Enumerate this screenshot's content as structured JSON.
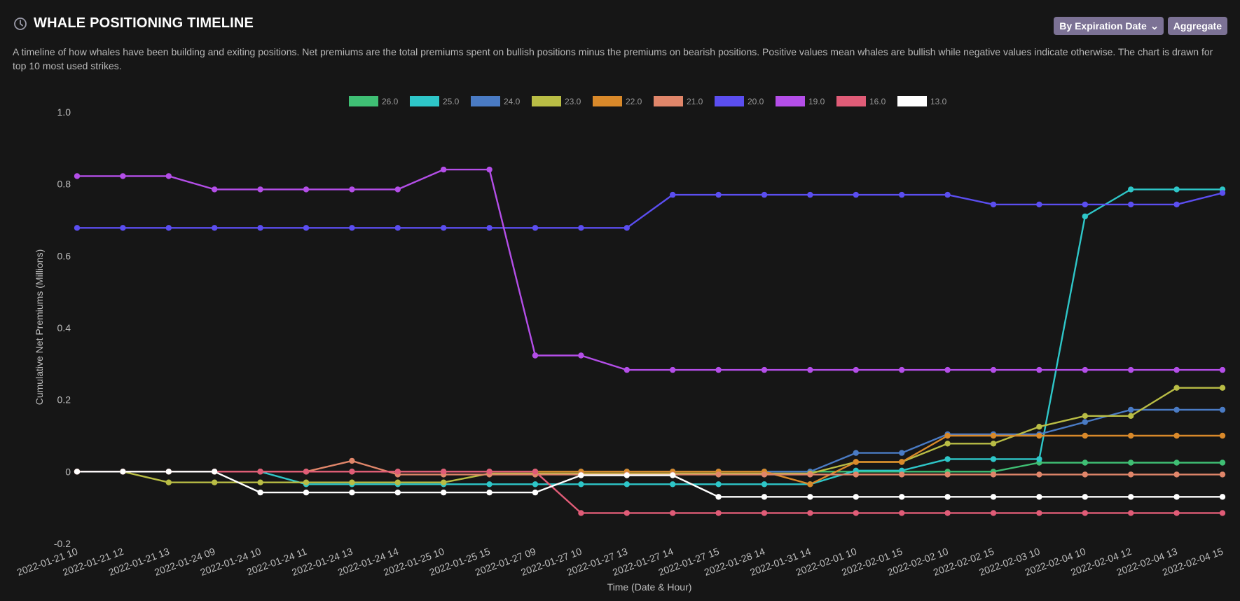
{
  "header": {
    "title": "WHALE POSITIONING TIMELINE",
    "description": "A timeline of how whales have been building and exiting positions. Net premiums are the total premiums spent on bullish positions minus the premiums on bearish positions. Positive values mean whales are bullish while negative values indicate otherwise. The chart is drawn for top 10 most used strikes.",
    "clock_icon": "clock-icon"
  },
  "controls": {
    "group_by_label": "By Expiration Date",
    "aggregate_label": "Aggregate",
    "button_color": "#7c7295"
  },
  "chart_data": {
    "type": "line",
    "xlabel": "Time (Date & Hour)",
    "ylabel": "Cumulative Net Premiums (Millions)",
    "ylim": [
      -0.2,
      1.0
    ],
    "yticks": [
      "1.0",
      "0.8",
      "0.6",
      "0.4",
      "0.2",
      "0",
      "-0.2"
    ],
    "ytick_values": [
      1.0,
      0.8,
      0.6,
      0.4,
      0.2,
      0,
      -0.2
    ],
    "legend_position": "top",
    "categories": [
      "2022-01-21 10",
      "2022-01-21 12",
      "2022-01-21 13",
      "2022-01-24 09",
      "2022-01-24 10",
      "2022-01-24 11",
      "2022-01-24 13",
      "2022-01-24 14",
      "2022-01-25 10",
      "2022-01-25 15",
      "2022-01-27 09",
      "2022-01-27 10",
      "2022-01-27 13",
      "2022-01-27 14",
      "2022-01-27 15",
      "2022-01-28 14",
      "2022-01-31 14",
      "2022-02-01 10",
      "2022-02-01 15",
      "2022-02-02 10",
      "2022-02-02 15",
      "2022-02-03 10",
      "2022-02-04 10",
      "2022-02-04 12",
      "2022-02-04 13",
      "2022-02-04 15"
    ],
    "series": [
      {
        "name": "26.0",
        "color": "#3fbf74",
        "values": [
          0,
          0,
          0,
          0,
          0,
          0,
          0,
          0,
          0,
          0,
          0,
          0,
          0,
          0,
          0,
          0,
          0,
          0,
          0,
          0,
          0,
          0.025,
          0.025,
          0.025,
          0.025,
          0.025
        ]
      },
      {
        "name": "25.0",
        "color": "#2ec6c8",
        "values": [
          0,
          0,
          0,
          0,
          0,
          -0.035,
          -0.035,
          -0.035,
          -0.035,
          -0.035,
          -0.035,
          -0.035,
          -0.035,
          -0.035,
          -0.035,
          -0.035,
          -0.035,
          0.003,
          0.003,
          0.035,
          0.035,
          0.035,
          0.71,
          0.785,
          0.785,
          0.785
        ]
      },
      {
        "name": "24.0",
        "color": "#4a7bc4",
        "values": [
          0,
          0,
          0,
          0,
          0,
          0,
          0,
          0,
          0,
          0,
          0,
          0,
          0,
          0,
          0,
          0,
          0,
          0.052,
          0.052,
          0.104,
          0.104,
          0.104,
          0.138,
          0.172,
          0.172,
          0.172
        ]
      },
      {
        "name": "23.0",
        "color": "#b9bd45",
        "values": [
          0,
          0,
          -0.03,
          -0.03,
          -0.03,
          -0.03,
          -0.03,
          -0.03,
          -0.03,
          -0.005,
          -0.005,
          -0.005,
          -0.005,
          -0.005,
          -0.005,
          -0.005,
          -0.005,
          0.027,
          0.027,
          0.078,
          0.078,
          0.125,
          0.155,
          0.155,
          0.233,
          0.233
        ]
      },
      {
        "name": "22.0",
        "color": "#d9892a",
        "values": [
          0,
          0,
          0,
          0,
          0,
          0,
          0,
          0,
          0,
          0,
          0,
          0,
          0,
          0,
          0,
          0,
          -0.035,
          0.027,
          0.027,
          0.1,
          0.1,
          0.1,
          0.1,
          0.1,
          0.1,
          0.1
        ]
      },
      {
        "name": "21.0",
        "color": "#e0866a",
        "values": [
          0,
          0,
          0,
          0,
          0,
          0,
          0.03,
          -0.008,
          -0.008,
          -0.008,
          -0.008,
          -0.008,
          -0.008,
          -0.008,
          -0.008,
          -0.008,
          -0.008,
          -0.008,
          -0.008,
          -0.008,
          -0.008,
          -0.008,
          -0.008,
          -0.008,
          -0.008,
          -0.008
        ]
      },
      {
        "name": "20.0",
        "color": "#5b4ef0",
        "values": [
          0.678,
          0.678,
          0.678,
          0.678,
          0.678,
          0.678,
          0.678,
          0.678,
          0.678,
          0.678,
          0.678,
          0.678,
          0.678,
          0.77,
          0.77,
          0.77,
          0.77,
          0.77,
          0.77,
          0.77,
          0.743,
          0.743,
          0.743,
          0.743,
          0.743,
          0.775
        ]
      },
      {
        "name": "19.0",
        "color": "#b44ee8",
        "values": [
          0.822,
          0.822,
          0.822,
          0.785,
          0.785,
          0.785,
          0.785,
          0.785,
          0.84,
          0.84,
          0.323,
          0.323,
          0.283,
          0.283,
          0.283,
          0.283,
          0.283,
          0.283,
          0.283,
          0.283,
          0.283,
          0.283,
          0.283,
          0.283,
          0.283,
          0.283
        ]
      },
      {
        "name": "16.0",
        "color": "#e05c77",
        "values": [
          0,
          0,
          0,
          0,
          0,
          0,
          0,
          0,
          0,
          0,
          0,
          -0.115,
          -0.115,
          -0.115,
          -0.115,
          -0.115,
          -0.115,
          -0.115,
          -0.115,
          -0.115,
          -0.115,
          -0.115,
          -0.115,
          -0.115,
          -0.115,
          -0.115
        ]
      },
      {
        "name": "13.0",
        "color": "#ffffff",
        "values": [
          0,
          0,
          0,
          0,
          -0.058,
          -0.058,
          -0.058,
          -0.058,
          -0.058,
          -0.058,
          -0.058,
          -0.01,
          -0.01,
          -0.01,
          -0.07,
          -0.07,
          -0.07,
          -0.07,
          -0.07,
          -0.07,
          -0.07,
          -0.07,
          -0.07,
          -0.07,
          -0.07,
          -0.07
        ]
      }
    ]
  }
}
